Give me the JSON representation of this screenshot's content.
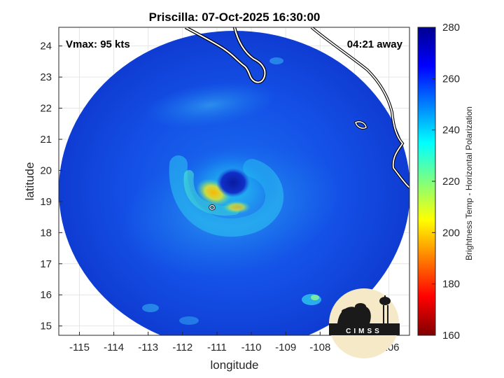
{
  "title": "Priscilla: 07-Oct-2025 16:30:00",
  "annotations": {
    "vmax": "Vmax: 95 kts",
    "away": "04:21 away"
  },
  "logo_text": "CIMSS",
  "axes": {
    "xlabel": "longitude",
    "ylabel": "latitude",
    "xlim": [
      -115.6,
      -105.4
    ],
    "ylim": [
      14.7,
      24.6
    ],
    "xticks": [
      -115,
      -114,
      -113,
      -112,
      -111,
      -110,
      -109,
      -108,
      -107,
      -106
    ],
    "yticks": [
      15,
      16,
      17,
      18,
      19,
      20,
      21,
      22,
      23,
      24
    ],
    "grid": true
  },
  "colorbar": {
    "label": "Brightness Temp - Horizontal Polarization",
    "range": [
      160,
      280
    ],
    "ticks": [
      160,
      180,
      200,
      220,
      240,
      260,
      280
    ],
    "colormap": [
      "#7f0000",
      "#ff0000",
      "#ff7f00",
      "#ffff00",
      "#7fff7f",
      "#00ffff",
      "#007fff",
      "#0000ff",
      "#00008f"
    ]
  },
  "storm": {
    "name": "Priscilla",
    "eye_center_lon": -110.3,
    "eye_center_lat": 19.6
  }
}
